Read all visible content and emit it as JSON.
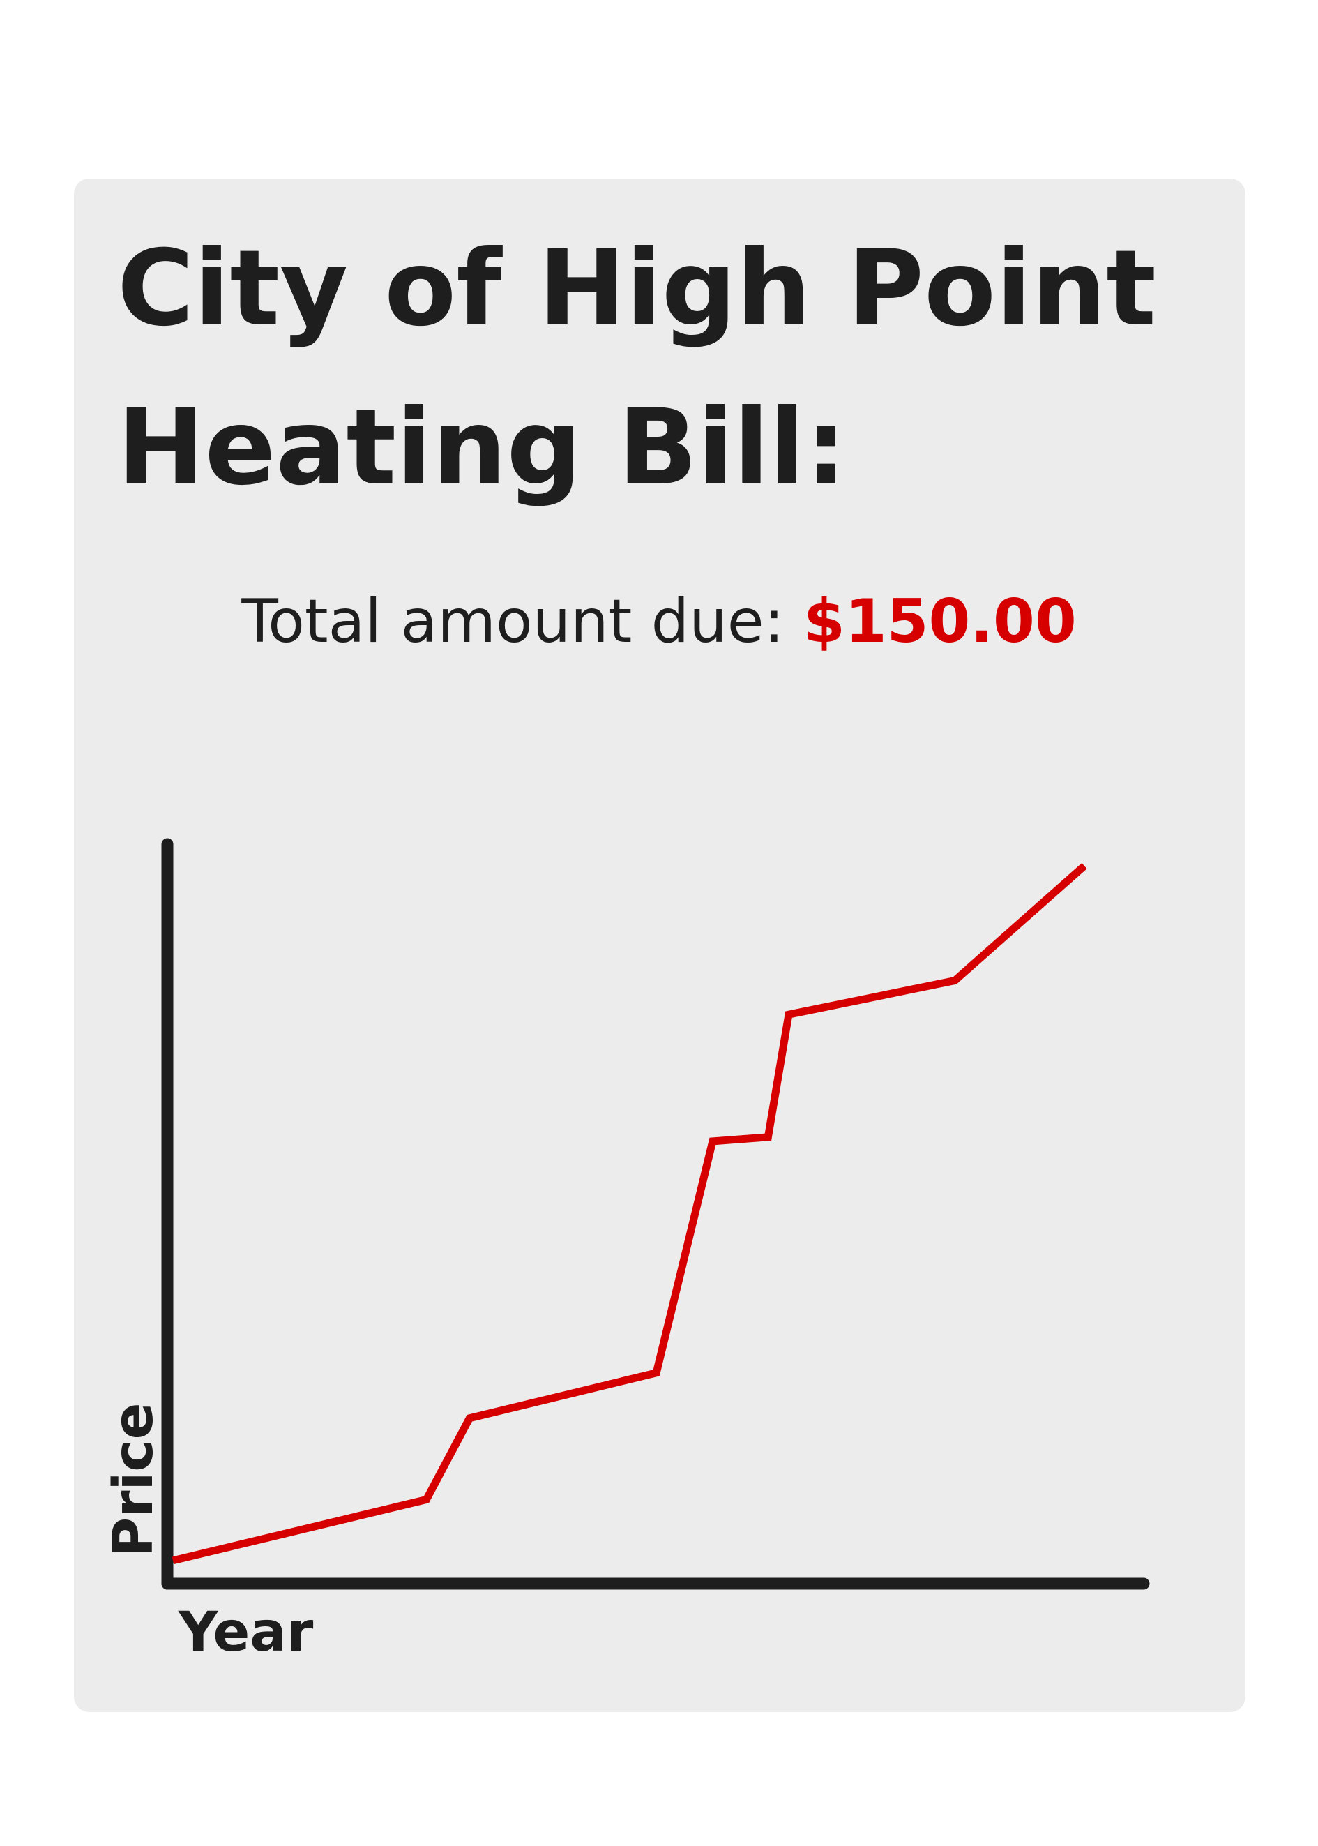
{
  "title_line1": "City of High Point",
  "title_line2": "Heating Bill:",
  "amount_label": "Total amount due:",
  "amount_value": "$150.00",
  "colors": {
    "card": "#ececed",
    "text": "#1e1e1e",
    "accent": "#d60000"
  },
  "chart_data": {
    "type": "line",
    "xlabel": "Year",
    "ylabel": "Price",
    "grid": false,
    "ticks": false,
    "xlim": [
      0,
      100
    ],
    "ylim": [
      0,
      100
    ],
    "series": [
      {
        "values_x": [
          0,
          27,
          31.6,
          51.5,
          57.5,
          63.4,
          65.6,
          83.3,
          97.1
        ],
        "values_y": [
          1.3,
          9.9,
          21.4,
          27.8,
          60.5,
          61.1,
          78.4,
          83.2,
          99.4
        ]
      }
    ]
  }
}
